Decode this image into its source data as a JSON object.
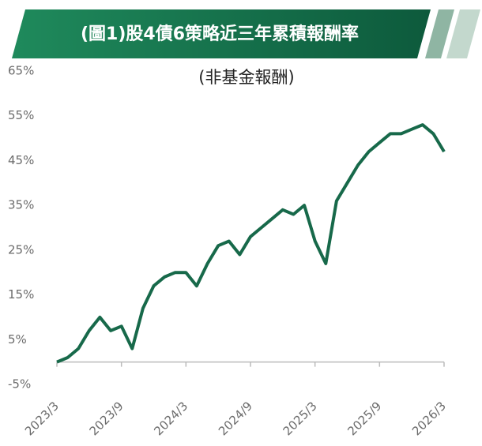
{
  "chart_data": {
    "type": "line",
    "title": "(圖1)股4債6策略近三年累積報酬率",
    "subtitle": "(非基金報酬)",
    "categories": [
      "2023/3",
      "2023/4",
      "2023/5",
      "2023/6",
      "2023/7",
      "2023/8",
      "2023/9",
      "2023/10",
      "2023/11",
      "2023/12",
      "2024/1",
      "2024/2",
      "2024/3",
      "2024/4",
      "2024/5",
      "2024/6",
      "2024/7",
      "2024/8",
      "2024/9",
      "2024/10",
      "2024/11",
      "2024/12",
      "2025/1",
      "2025/2",
      "2025/3",
      "2025/4",
      "2025/5",
      "2025/6",
      "2025/7",
      "2025/8",
      "2025/9",
      "2025/10",
      "2025/11",
      "2025/12",
      "2026/1",
      "2026/2",
      "2026/3"
    ],
    "xticks": [
      "2023/3",
      "2023/9",
      "2024/3",
      "2024/9",
      "2025/3",
      "2025/9",
      "2026/3"
    ],
    "series": [
      {
        "name": "股4債6策略",
        "color": "#17694a",
        "values": [
          0,
          1,
          3,
          7,
          10,
          7,
          8,
          3,
          12,
          17,
          19,
          20,
          20,
          17,
          22,
          26,
          27,
          24,
          28,
          30,
          32,
          34,
          33,
          35,
          27,
          22,
          36,
          40,
          44,
          47,
          49,
          51,
          51,
          52,
          53,
          51,
          47
        ]
      }
    ],
    "ylim": [
      -5,
      65
    ],
    "yticks": [
      {
        "value": -5,
        "label": "-5%"
      },
      {
        "value": 5,
        "label": "5%"
      },
      {
        "value": 15,
        "label": "15%"
      },
      {
        "value": 25,
        "label": "25%"
      },
      {
        "value": 35,
        "label": "35%"
      },
      {
        "value": 45,
        "label": "45%"
      },
      {
        "value": 55,
        "label": "55%"
      },
      {
        "value": 65,
        "label": "65%"
      }
    ],
    "grid": false
  }
}
